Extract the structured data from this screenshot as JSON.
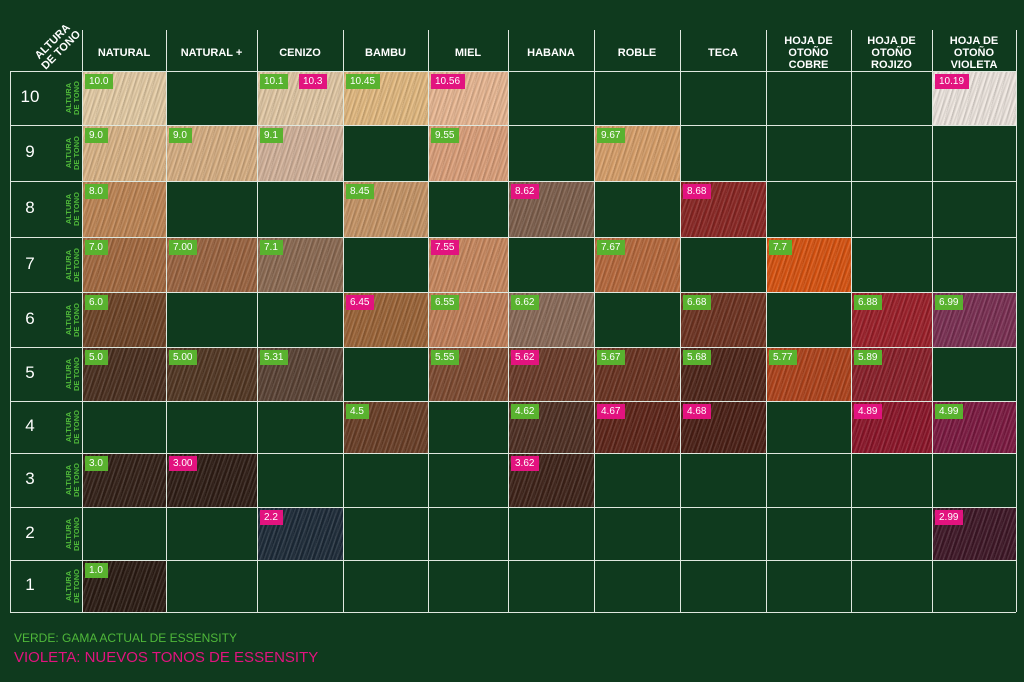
{
  "corner_label": [
    "ALTURA",
    "DE TONO"
  ],
  "row_sublabel": [
    "ALTURA",
    "DE TONO"
  ],
  "columns": [
    [
      "NATURAL"
    ],
    [
      "NATURAL +"
    ],
    [
      "CENIZO"
    ],
    [
      "BAMBU"
    ],
    [
      "MIEL"
    ],
    [
      "HABANA"
    ],
    [
      "ROBLE"
    ],
    [
      "TECA"
    ],
    [
      "HOJA DE OTOÑO",
      "COBRE"
    ],
    [
      "HOJA DE OTOÑO",
      "ROJIZO"
    ],
    [
      "HOJA DE OTOÑO",
      "VIOLETA"
    ]
  ],
  "rows": [
    "10",
    "9",
    "8",
    "7",
    "6",
    "5",
    "4",
    "3",
    "2",
    "1"
  ],
  "colors": {
    "current_range": "#59b22f",
    "new_tones": "#e2137f",
    "background": "#0f3a1e"
  },
  "cells": [
    {
      "r": 0,
      "c": 0,
      "labels": [
        {
          "t": "10.0",
          "k": "green"
        }
      ],
      "color": "#e6cda6"
    },
    {
      "r": 0,
      "c": 2,
      "labels": [
        {
          "t": "10.1",
          "k": "green"
        },
        {
          "t": "10.3",
          "k": "pink"
        }
      ],
      "color": "#e3c9a5"
    },
    {
      "r": 0,
      "c": 3,
      "labels": [
        {
          "t": "10.45",
          "k": "green"
        }
      ],
      "color": "#e4ba80"
    },
    {
      "r": 0,
      "c": 4,
      "labels": [
        {
          "t": "10.56",
          "k": "pink"
        }
      ],
      "color": "#eab893"
    },
    {
      "r": 0,
      "c": 10,
      "labels": [
        {
          "t": "10.19",
          "k": "pink"
        }
      ],
      "color": "#efe7e0"
    },
    {
      "r": 1,
      "c": 0,
      "labels": [
        {
          "t": "9.0",
          "k": "green"
        }
      ],
      "color": "#dcb587"
    },
    {
      "r": 1,
      "c": 1,
      "labels": [
        {
          "t": "9.0",
          "k": "green"
        }
      ],
      "color": "#d9b083"
    },
    {
      "r": 1,
      "c": 2,
      "labels": [
        {
          "t": "9.1",
          "k": "green"
        }
      ],
      "color": "#d4b39b"
    },
    {
      "r": 1,
      "c": 4,
      "labels": [
        {
          "t": "9.55",
          "k": "green"
        }
      ],
      "color": "#dda07a"
    },
    {
      "r": 1,
      "c": 6,
      "labels": [
        {
          "t": "9.67",
          "k": "green"
        }
      ],
      "color": "#d9a06a"
    },
    {
      "r": 2,
      "c": 0,
      "labels": [
        {
          "t": "8.0",
          "k": "green"
        }
      ],
      "color": "#bf8554"
    },
    {
      "r": 2,
      "c": 3,
      "labels": [
        {
          "t": "8.45",
          "k": "green"
        }
      ],
      "color": "#c79566"
    },
    {
      "r": 2,
      "c": 5,
      "labels": [
        {
          "t": "8.62",
          "k": "pink"
        }
      ],
      "color": "#7e5f4c"
    },
    {
      "r": 2,
      "c": 7,
      "labels": [
        {
          "t": "8.68",
          "k": "pink"
        }
      ],
      "color": "#8a2522"
    },
    {
      "r": 3,
      "c": 0,
      "labels": [
        {
          "t": "7.0",
          "k": "green"
        }
      ],
      "color": "#a4693f"
    },
    {
      "r": 3,
      "c": 1,
      "labels": [
        {
          "t": "7.00",
          "k": "green"
        }
      ],
      "color": "#9c6440"
    },
    {
      "r": 3,
      "c": 2,
      "labels": [
        {
          "t": "7.1",
          "k": "green"
        }
      ],
      "color": "#8c6a52"
    },
    {
      "r": 3,
      "c": 4,
      "labels": [
        {
          "t": "7.55",
          "k": "pink"
        }
      ],
      "color": "#c9885e"
    },
    {
      "r": 3,
      "c": 6,
      "labels": [
        {
          "t": "7.67",
          "k": "green"
        }
      ],
      "color": "#b8693c"
    },
    {
      "r": 3,
      "c": 8,
      "labels": [
        {
          "t": "7.7",
          "k": "green"
        }
      ],
      "color": "#d9520f"
    },
    {
      "r": 4,
      "c": 0,
      "labels": [
        {
          "t": "6.0",
          "k": "green"
        }
      ],
      "color": "#6e4326"
    },
    {
      "r": 4,
      "c": 3,
      "labels": [
        {
          "t": "6.45",
          "k": "pink"
        }
      ],
      "color": "#9c6437"
    },
    {
      "r": 4,
      "c": 4,
      "labels": [
        {
          "t": "6.55",
          "k": "green"
        }
      ],
      "color": "#c27f58"
    },
    {
      "r": 4,
      "c": 5,
      "labels": [
        {
          "t": "6.62",
          "k": "green"
        }
      ],
      "color": "#8a6a58"
    },
    {
      "r": 4,
      "c": 7,
      "labels": [
        {
          "t": "6.68",
          "k": "green"
        }
      ],
      "color": "#6e3220"
    },
    {
      "r": 4,
      "c": 9,
      "labels": [
        {
          "t": "6.88",
          "k": "green"
        }
      ],
      "color": "#9c1e28"
    },
    {
      "r": 4,
      "c": 10,
      "labels": [
        {
          "t": "6.99",
          "k": "green"
        }
      ],
      "color": "#7a2e52"
    },
    {
      "r": 5,
      "c": 0,
      "labels": [
        {
          "t": "5.0",
          "k": "green"
        }
      ],
      "color": "#4a2e1e"
    },
    {
      "r": 5,
      "c": 1,
      "labels": [
        {
          "t": "5.00",
          "k": "green"
        }
      ],
      "color": "#523622"
    },
    {
      "r": 5,
      "c": 2,
      "labels": [
        {
          "t": "5.31",
          "k": "green"
        }
      ],
      "color": "#5a4234"
    },
    {
      "r": 5,
      "c": 4,
      "labels": [
        {
          "t": "5.55",
          "k": "green"
        }
      ],
      "color": "#7e4a30"
    },
    {
      "r": 5,
      "c": 5,
      "labels": [
        {
          "t": "5.62",
          "k": "pink"
        }
      ],
      "color": "#6a3a28"
    },
    {
      "r": 5,
      "c": 6,
      "labels": [
        {
          "t": "5.67",
          "k": "green"
        }
      ],
      "color": "#6a3220"
    },
    {
      "r": 5,
      "c": 7,
      "labels": [
        {
          "t": "5.68",
          "k": "green"
        }
      ],
      "color": "#4e2418"
    },
    {
      "r": 5,
      "c": 8,
      "labels": [
        {
          "t": "5.77",
          "k": "green"
        }
      ],
      "color": "#b0421a"
    },
    {
      "r": 5,
      "c": 9,
      "labels": [
        {
          "t": "5.89",
          "k": "green"
        }
      ],
      "color": "#8a1e28"
    },
    {
      "r": 6,
      "c": 3,
      "labels": [
        {
          "t": "4.5",
          "k": "green"
        }
      ],
      "color": "#6a3e26"
    },
    {
      "r": 6,
      "c": 5,
      "labels": [
        {
          "t": "4.62",
          "k": "green"
        }
      ],
      "color": "#4e2e22"
    },
    {
      "r": 6,
      "c": 6,
      "labels": [
        {
          "t": "4.67",
          "k": "pink"
        }
      ],
      "color": "#5e2418"
    },
    {
      "r": 6,
      "c": 7,
      "labels": [
        {
          "t": "4.68",
          "k": "pink"
        }
      ],
      "color": "#4a1e14"
    },
    {
      "r": 6,
      "c": 9,
      "labels": [
        {
          "t": "4.89",
          "k": "pink"
        }
      ],
      "color": "#8c1428"
    },
    {
      "r": 6,
      "c": 10,
      "labels": [
        {
          "t": "4.99",
          "k": "green"
        }
      ],
      "color": "#7c1840"
    },
    {
      "r": 7,
      "c": 0,
      "labels": [
        {
          "t": "3.0",
          "k": "green"
        }
      ],
      "color": "#321f16"
    },
    {
      "r": 7,
      "c": 1,
      "labels": [
        {
          "t": "3.00",
          "k": "pink"
        }
      ],
      "color": "#2e1c14"
    },
    {
      "r": 7,
      "c": 5,
      "labels": [
        {
          "t": "3.62",
          "k": "pink"
        }
      ],
      "color": "#3e2218"
    },
    {
      "r": 8,
      "c": 2,
      "labels": [
        {
          "t": "2.2",
          "k": "pink"
        }
      ],
      "color": "#1c2a38"
    },
    {
      "r": 8,
      "c": 10,
      "labels": [
        {
          "t": "2.99",
          "k": "pink"
        }
      ],
      "color": "#3e1626"
    },
    {
      "r": 9,
      "c": 0,
      "labels": [
        {
          "t": "1.0",
          "k": "green"
        }
      ],
      "color": "#2a1a12"
    }
  ],
  "legend": {
    "green": "VERDE: GAMA ACTUAL DE ESSENSITY",
    "violet": "VIOLETA: NUEVOS TONOS DE ESSENSITY"
  }
}
